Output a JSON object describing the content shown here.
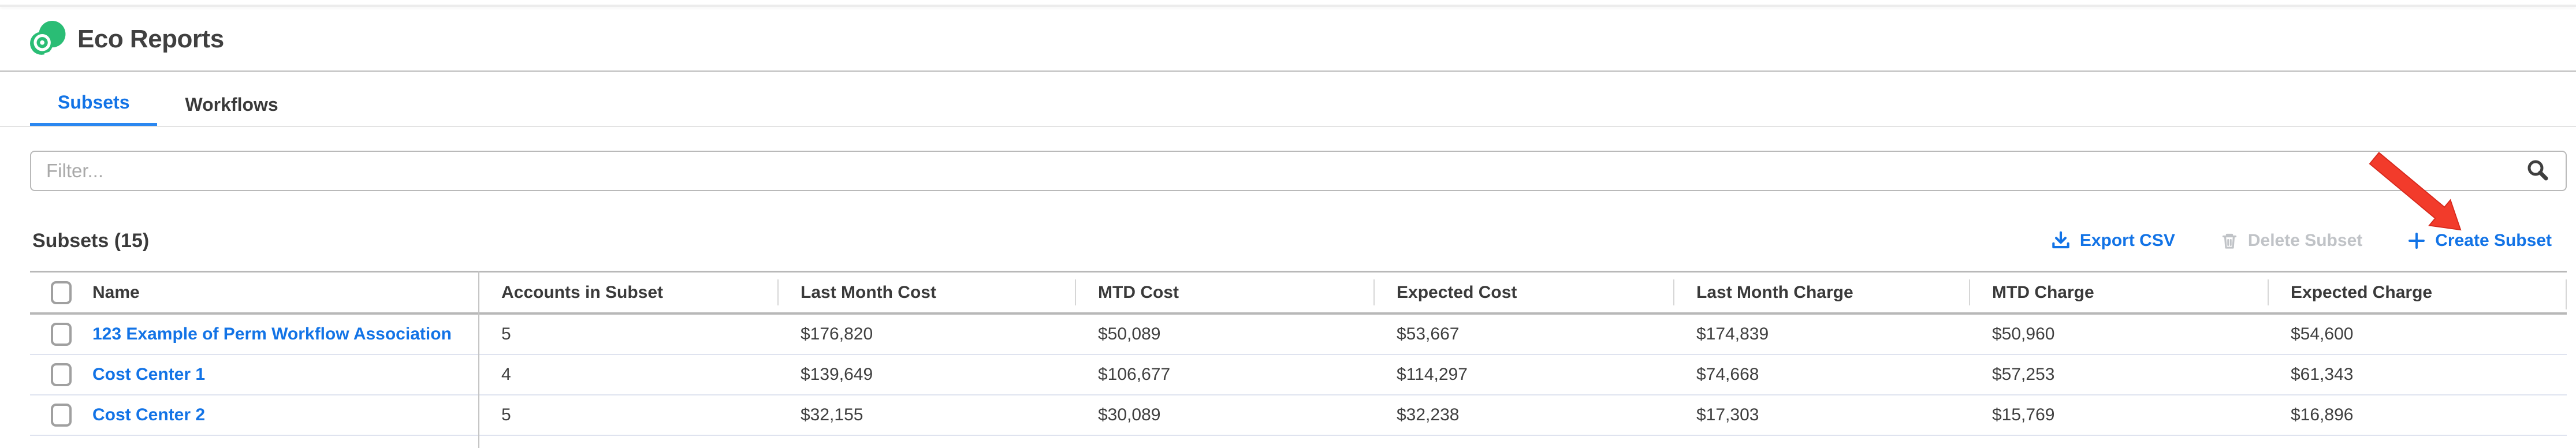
{
  "app": {
    "title": "Eco Reports"
  },
  "tabs": [
    {
      "label": "Subsets",
      "active": true
    },
    {
      "label": "Workflows",
      "active": false
    }
  ],
  "filter": {
    "placeholder": "Filter..."
  },
  "list": {
    "heading": "Subsets (15)",
    "actions": {
      "export": {
        "label": "Export CSV",
        "icon": "download-icon",
        "enabled": true
      },
      "delete": {
        "label": "Delete Subset",
        "icon": "trash-icon",
        "enabled": false
      },
      "create": {
        "label": "Create Subset",
        "icon": "plus-icon",
        "enabled": true
      }
    }
  },
  "table": {
    "columns": [
      "Name",
      "Accounts in Subset",
      "Last Month Cost",
      "MTD Cost",
      "Expected Cost",
      "Last Month Charge",
      "MTD Charge",
      "Expected Charge"
    ],
    "rows": [
      [
        "123 Example of Perm Workflow Association",
        "5",
        "$176,820",
        "$50,089",
        "$53,667",
        "$174,839",
        "$50,960",
        "$54,600"
      ],
      [
        "Cost Center 1",
        "4",
        "$139,649",
        "$106,677",
        "$114,297",
        "$74,668",
        "$57,253",
        "$61,343"
      ],
      [
        "Cost Center 2",
        "5",
        "$32,155",
        "$30,089",
        "$32,238",
        "$17,303",
        "$15,769",
        "$16,896"
      ]
    ]
  },
  "annotation": {
    "shape": "red-arrow",
    "points_to": "Create Subset",
    "color": "#f23b2b"
  },
  "colors": {
    "accent_blue": "#1273e6",
    "tab_underline": "#2b87f0",
    "disabled_gray": "#c0c3c7",
    "logo_green": "#2abd75",
    "text_dark": "#3c3c3c",
    "table_border": "#b8b8b8",
    "row_separator": "#dfe3ef",
    "arrow_red": "#f23b2b"
  }
}
